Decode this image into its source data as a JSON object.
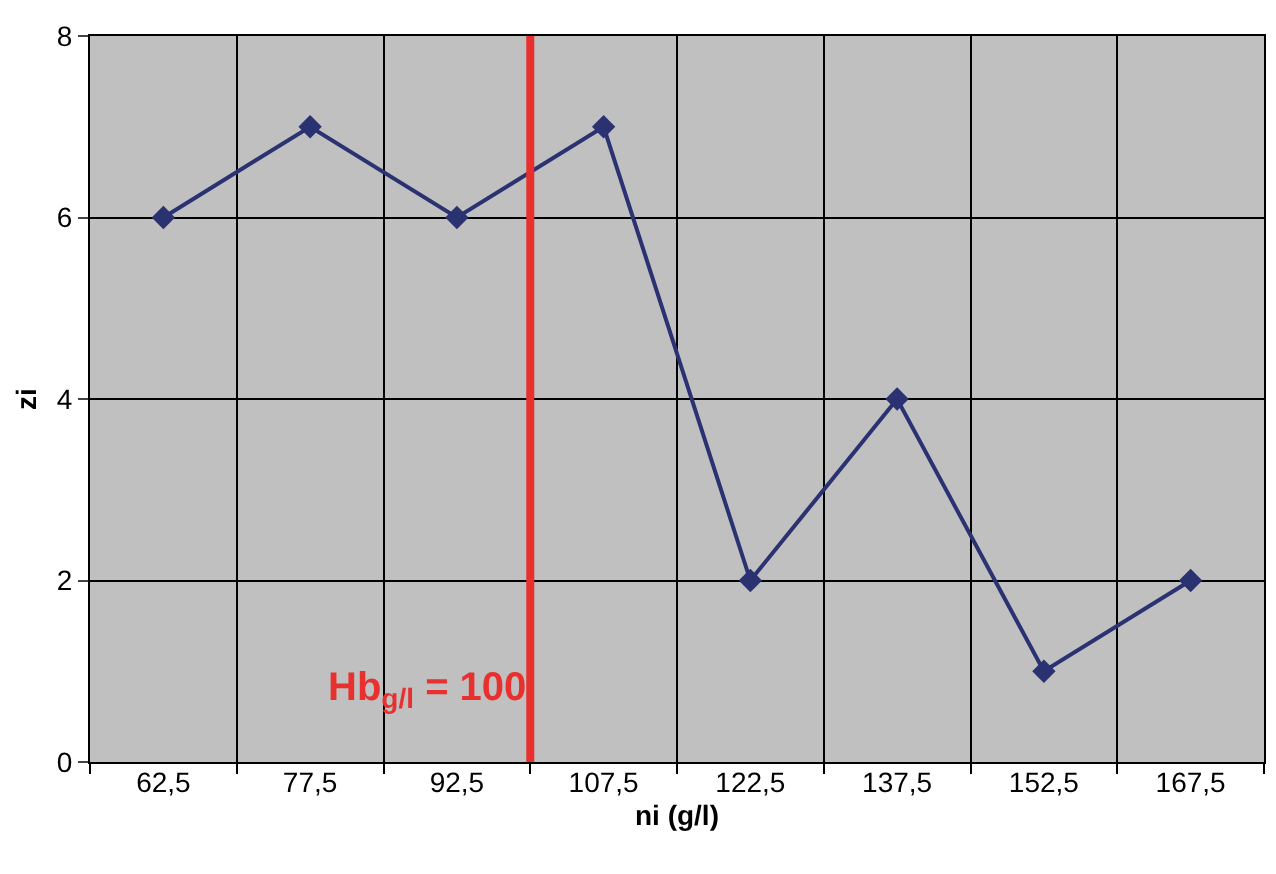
{
  "chart_data": {
    "type": "line",
    "xlabel": "ni (g/l)",
    "ylabel": "zi",
    "x": [
      62.5,
      77.5,
      92.5,
      107.5,
      122.5,
      137.5,
      152.5,
      167.5
    ],
    "series": [
      {
        "color": "#2b3272",
        "values": [
          6,
          7,
          6,
          7,
          2,
          4,
          1,
          2
        ]
      }
    ],
    "xlim": [
      55,
      175
    ],
    "xticks": [
      {
        "value": 55,
        "label": null
      },
      {
        "value": 62.5,
        "label": "62,5"
      },
      {
        "value": 70,
        "label": null
      },
      {
        "value": 77.5,
        "label": "77,5"
      },
      {
        "value": 85,
        "label": null
      },
      {
        "value": 92.5,
        "label": "92,5"
      },
      {
        "value": 100,
        "label": null
      },
      {
        "value": 107.5,
        "label": "107,5"
      },
      {
        "value": 115,
        "label": null
      },
      {
        "value": 122.5,
        "label": "122,5"
      },
      {
        "value": 130,
        "label": null
      },
      {
        "value": 137.5,
        "label": "137,5"
      },
      {
        "value": 145,
        "label": null
      },
      {
        "value": 152.5,
        "label": "152,5"
      },
      {
        "value": 160,
        "label": null
      },
      {
        "value": 167.5,
        "label": "167,5"
      },
      {
        "value": 175,
        "label": null
      }
    ],
    "ylim": [
      0,
      8
    ],
    "yticks": [
      0,
      2,
      4,
      6,
      8
    ],
    "ref_lines": [
      {
        "axis": "x",
        "value": 100,
        "label": "Hb$_{g/l}$ = 100",
        "color": "#e8312f"
      }
    ],
    "grid": true,
    "marker": "diamond",
    "line_style": "solid"
  }
}
